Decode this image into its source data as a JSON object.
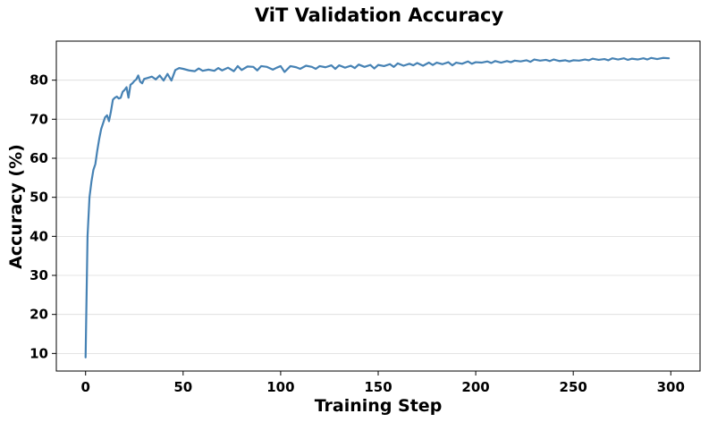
{
  "chart_data": {
    "type": "line",
    "title": "ViT Validation Accuracy",
    "xlabel": "Training Step",
    "ylabel": "Accuracy (%)",
    "xlim": [
      -15,
      315
    ],
    "ylim": [
      5.5,
      90
    ],
    "xticks": [
      0,
      50,
      100,
      150,
      200,
      250,
      300
    ],
    "yticks": [
      10,
      20,
      30,
      40,
      50,
      60,
      70,
      80
    ],
    "grid": "horizontal",
    "line_color": "#4682b4",
    "series": [
      {
        "name": "Validation Accuracy",
        "points": [
          [
            0,
            9
          ],
          [
            1,
            40
          ],
          [
            2,
            50
          ],
          [
            3,
            54
          ],
          [
            4,
            57
          ],
          [
            5,
            58.5
          ],
          [
            6,
            62
          ],
          [
            7,
            65
          ],
          [
            8,
            67.5
          ],
          [
            9,
            69
          ],
          [
            10,
            70.5
          ],
          [
            11,
            71
          ],
          [
            12,
            69.5
          ],
          [
            13,
            72
          ],
          [
            14,
            75
          ],
          [
            15,
            75.5
          ],
          [
            16,
            75.8
          ],
          [
            17,
            75.3
          ],
          [
            18,
            75.5
          ],
          [
            19,
            77
          ],
          [
            20,
            77.5
          ],
          [
            21,
            78.2
          ],
          [
            22,
            75.5
          ],
          [
            23,
            78.8
          ],
          [
            24,
            79.2
          ],
          [
            25,
            79.8
          ],
          [
            26,
            80.2
          ],
          [
            27,
            81.2
          ],
          [
            28,
            79.6
          ],
          [
            29,
            79.2
          ],
          [
            30,
            80.3
          ],
          [
            32,
            80.6
          ],
          [
            34,
            80.9
          ],
          [
            36,
            80.2
          ],
          [
            38,
            81.2
          ],
          [
            40,
            79.9
          ],
          [
            42,
            81.6
          ],
          [
            44,
            79.9
          ],
          [
            46,
            82.6
          ],
          [
            48,
            83.1
          ],
          [
            50,
            82.9
          ],
          [
            53,
            82.5
          ],
          [
            56,
            82.3
          ],
          [
            58,
            83.0
          ],
          [
            60,
            82.4
          ],
          [
            63,
            82.7
          ],
          [
            66,
            82.4
          ],
          [
            68,
            83.1
          ],
          [
            70,
            82.5
          ],
          [
            73,
            83.2
          ],
          [
            76,
            82.3
          ],
          [
            78,
            83.6
          ],
          [
            80,
            82.6
          ],
          [
            83,
            83.5
          ],
          [
            86,
            83.4
          ],
          [
            88,
            82.5
          ],
          [
            90,
            83.6
          ],
          [
            93,
            83.4
          ],
          [
            96,
            82.7
          ],
          [
            98,
            83.2
          ],
          [
            100,
            83.6
          ],
          [
            102,
            82.1
          ],
          [
            105,
            83.6
          ],
          [
            108,
            83.3
          ],
          [
            110,
            82.9
          ],
          [
            113,
            83.7
          ],
          [
            116,
            83.4
          ],
          [
            118,
            82.9
          ],
          [
            120,
            83.6
          ],
          [
            123,
            83.3
          ],
          [
            126,
            83.8
          ],
          [
            128,
            82.9
          ],
          [
            130,
            83.8
          ],
          [
            133,
            83.2
          ],
          [
            136,
            83.7
          ],
          [
            138,
            83.1
          ],
          [
            140,
            84.0
          ],
          [
            143,
            83.4
          ],
          [
            146,
            83.9
          ],
          [
            148,
            83.0
          ],
          [
            150,
            83.9
          ],
          [
            153,
            83.6
          ],
          [
            156,
            84.1
          ],
          [
            158,
            83.4
          ],
          [
            160,
            84.3
          ],
          [
            163,
            83.7
          ],
          [
            166,
            84.2
          ],
          [
            168,
            83.8
          ],
          [
            170,
            84.4
          ],
          [
            173,
            83.7
          ],
          [
            176,
            84.5
          ],
          [
            178,
            83.9
          ],
          [
            180,
            84.5
          ],
          [
            183,
            84.1
          ],
          [
            186,
            84.6
          ],
          [
            188,
            83.8
          ],
          [
            190,
            84.5
          ],
          [
            193,
            84.2
          ],
          [
            196,
            84.8
          ],
          [
            198,
            84.2
          ],
          [
            200,
            84.6
          ],
          [
            203,
            84.5
          ],
          [
            206,
            84.8
          ],
          [
            208,
            84.4
          ],
          [
            210,
            84.9
          ],
          [
            213,
            84.5
          ],
          [
            216,
            84.9
          ],
          [
            218,
            84.6
          ],
          [
            220,
            85.0
          ],
          [
            223,
            84.8
          ],
          [
            226,
            85.1
          ],
          [
            228,
            84.7
          ],
          [
            230,
            85.3
          ],
          [
            233,
            85.0
          ],
          [
            236,
            85.2
          ],
          [
            238,
            84.9
          ],
          [
            240,
            85.3
          ],
          [
            243,
            84.9
          ],
          [
            246,
            85.1
          ],
          [
            248,
            84.8
          ],
          [
            250,
            85.1
          ],
          [
            253,
            85.0
          ],
          [
            256,
            85.3
          ],
          [
            258,
            85.1
          ],
          [
            260,
            85.5
          ],
          [
            263,
            85.2
          ],
          [
            266,
            85.4
          ],
          [
            268,
            85.1
          ],
          [
            270,
            85.6
          ],
          [
            273,
            85.3
          ],
          [
            276,
            85.6
          ],
          [
            278,
            85.2
          ],
          [
            280,
            85.5
          ],
          [
            283,
            85.3
          ],
          [
            286,
            85.6
          ],
          [
            288,
            85.3
          ],
          [
            290,
            85.7
          ],
          [
            293,
            85.4
          ],
          [
            296,
            85.7
          ],
          [
            299,
            85.6
          ]
        ]
      }
    ]
  }
}
